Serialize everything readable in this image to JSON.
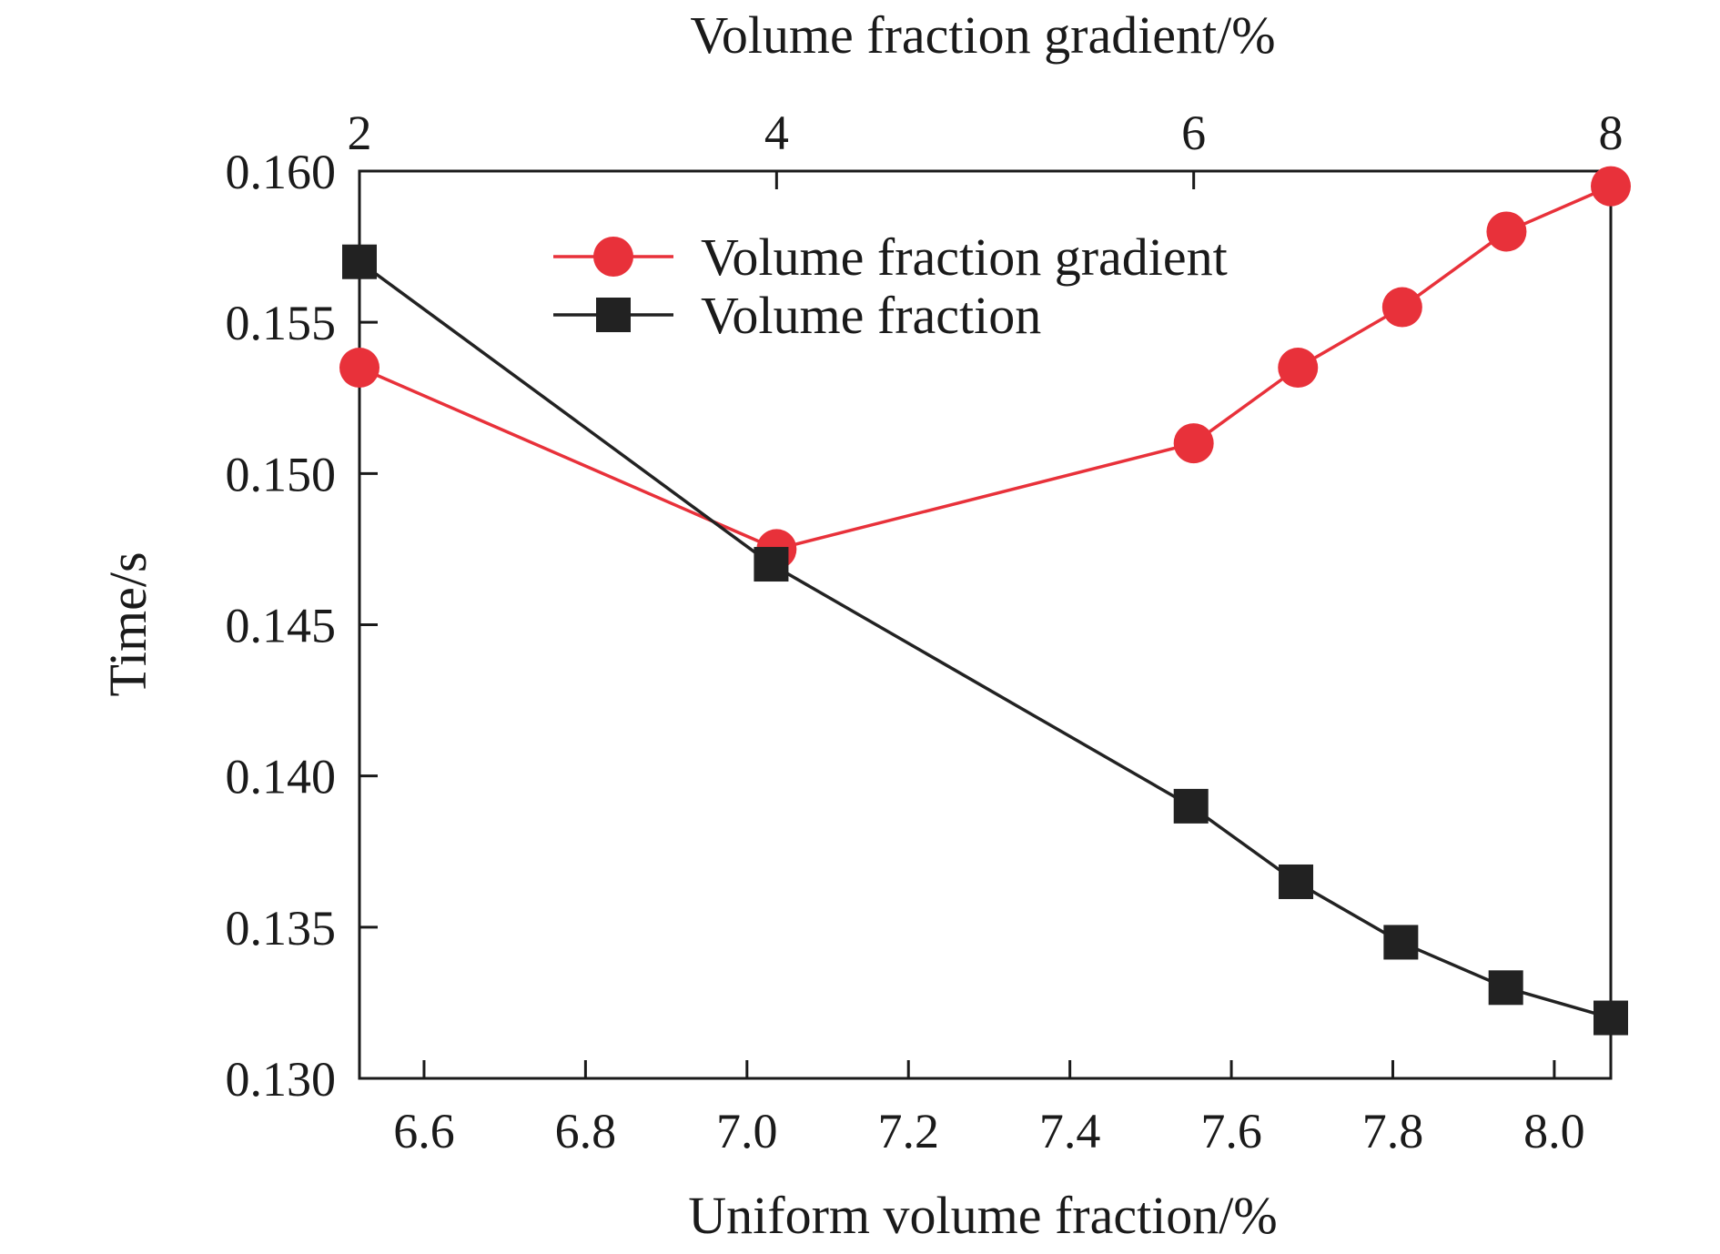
{
  "chart_data": {
    "type": "line",
    "xlabel": "Uniform volume fraction/%",
    "x2label": "Volume fraction gradient/%",
    "ylabel": "Time/s",
    "xlim": [
      6.52,
      8.07
    ],
    "x2lim": [
      2,
      8
    ],
    "ylim": [
      0.13,
      0.16
    ],
    "xticks": [
      "6.6",
      "6.8",
      "7.0",
      "7.2",
      "7.4",
      "7.6",
      "7.8",
      "8.0"
    ],
    "x2ticks": [
      "2",
      "4",
      "6",
      "8"
    ],
    "yticks": [
      "0.130",
      "0.135",
      "0.140",
      "0.145",
      "0.150",
      "0.155",
      "0.160"
    ],
    "grid": false,
    "legend_position": "top-center",
    "series": [
      {
        "name": "Volume fraction gradient",
        "axis": "top",
        "marker": "circle",
        "color": "#e8313a",
        "x": [
          2,
          4,
          6,
          6.5,
          7,
          7.5,
          8
        ],
        "y": [
          0.1535,
          0.1475,
          0.151,
          0.1535,
          0.1555,
          0.158,
          0.1595
        ]
      },
      {
        "name": "Volume fraction",
        "axis": "bottom",
        "marker": "square",
        "color": "#222222",
        "x": [
          6.52,
          7.03,
          7.55,
          7.68,
          7.81,
          7.94,
          8.07
        ],
        "y": [
          0.157,
          0.147,
          0.139,
          0.1365,
          0.1345,
          0.133,
          0.132
        ]
      }
    ]
  }
}
